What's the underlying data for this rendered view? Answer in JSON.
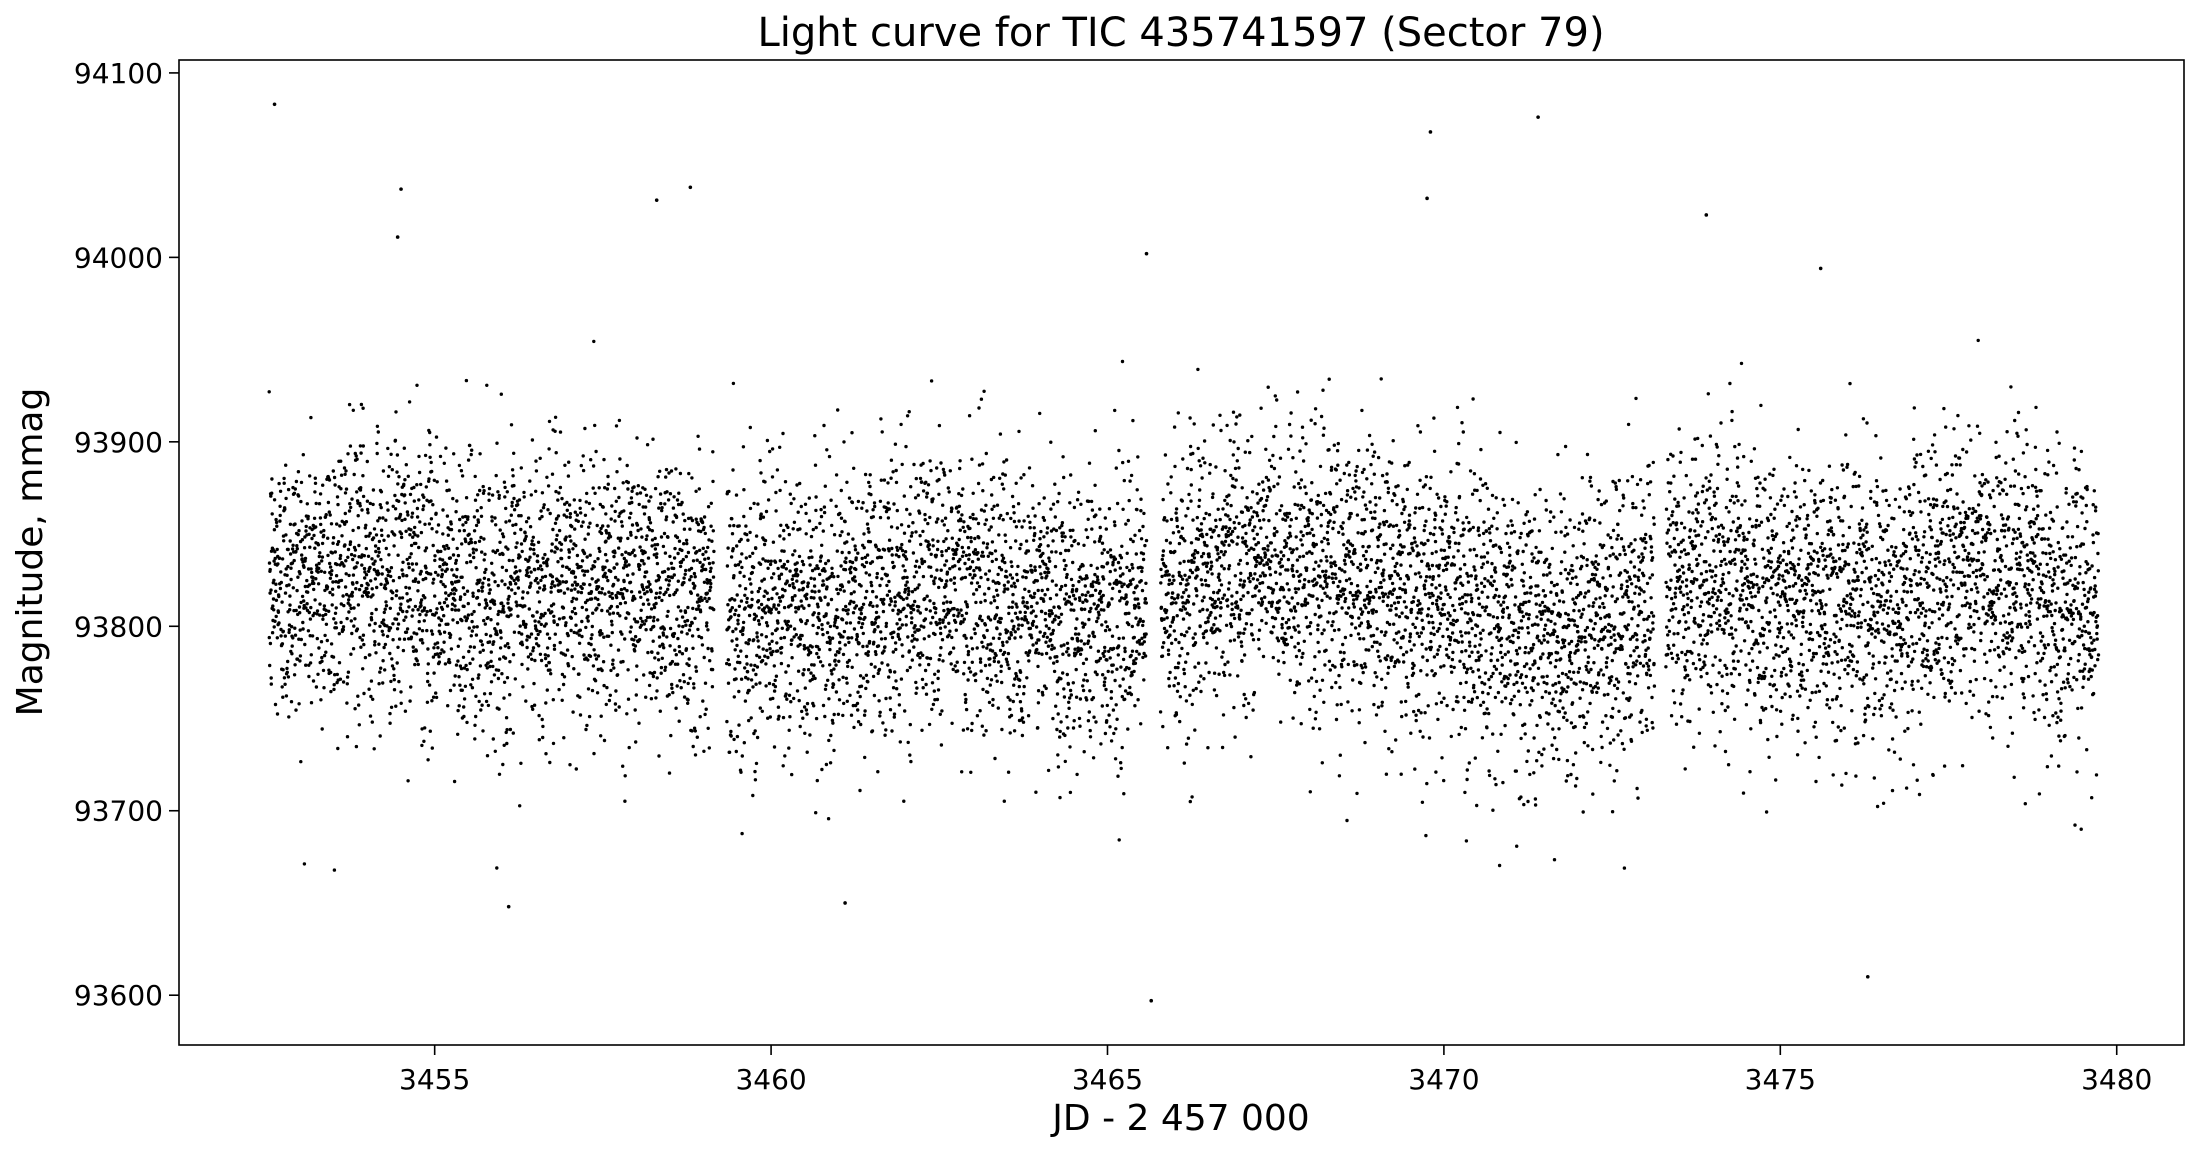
{
  "chart_data": {
    "type": "scatter",
    "title": "Light curve for TIC 435741597 (Sector 79)",
    "xlabel": "JD - 2 457 000",
    "ylabel": "Magnitude, mmag",
    "xlim": [
      3451.2,
      3481.0
    ],
    "ylim": [
      93573,
      94107
    ],
    "xticks": [
      3455,
      3460,
      3465,
      3470,
      3475,
      3480
    ],
    "yticks": [
      93600,
      93700,
      93800,
      93900,
      94000,
      94100
    ],
    "grid": false,
    "legend": "none",
    "marker_color": "#000000",
    "segments": [
      {
        "start": 3452.54,
        "end": 3459.15,
        "median_trend": [
          [
            3452.6,
            93822
          ],
          [
            3454,
            93830
          ],
          [
            3456,
            93815
          ],
          [
            3457.5,
            93825
          ],
          [
            3459.1,
            93820
          ]
        ],
        "scatter": 38
      },
      {
        "start": 3459.34,
        "end": 3465.58,
        "median_trend": [
          [
            3459.4,
            93810
          ],
          [
            3461,
            93808
          ],
          [
            3462.5,
            93825
          ],
          [
            3464,
            93810
          ],
          [
            3465.5,
            93805
          ]
        ],
        "scatter": 38
      },
      {
        "start": 3465.79,
        "end": 3473.13,
        "median_trend": [
          [
            3465.8,
            93815
          ],
          [
            3467,
            93835
          ],
          [
            3468.5,
            93825
          ],
          [
            3470,
            93815
          ],
          [
            3471.5,
            93795
          ],
          [
            3473.1,
            93810
          ]
        ],
        "scatter": 38
      },
      {
        "start": 3473.3,
        "end": 3479.73,
        "median_trend": [
          [
            3473.3,
            93825
          ],
          [
            3475,
            93815
          ],
          [
            3476.5,
            93815
          ],
          [
            3478,
            93830
          ],
          [
            3479.7,
            93810
          ]
        ],
        "scatter": 38
      }
    ],
    "cadence_days": 0.0027,
    "outliers": [
      {
        "x": 3452.62,
        "y": 94083
      },
      {
        "x": 3454.5,
        "y": 94037
      },
      {
        "x": 3454.45,
        "y": 94011
      },
      {
        "x": 3458.3,
        "y": 94031
      },
      {
        "x": 3458.8,
        "y": 94038
      },
      {
        "x": 3469.8,
        "y": 94068
      },
      {
        "x": 3469.75,
        "y": 94032
      },
      {
        "x": 3471.4,
        "y": 94076
      },
      {
        "x": 3473.9,
        "y": 94023
      },
      {
        "x": 3475.6,
        "y": 93994
      },
      {
        "x": 3465.58,
        "y": 94002
      },
      {
        "x": 3465.65,
        "y": 93597
      },
      {
        "x": 3476.3,
        "y": 93610
      },
      {
        "x": 3461.1,
        "y": 93650
      },
      {
        "x": 3456.1,
        "y": 93648
      }
    ]
  }
}
